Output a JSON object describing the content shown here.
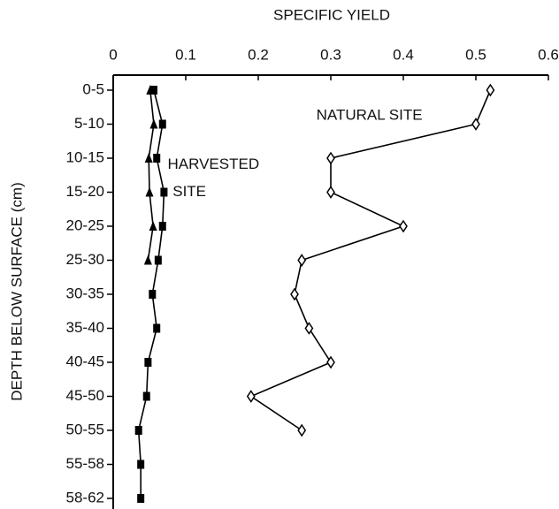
{
  "chart_data": {
    "type": "line",
    "orientation": "horizontal",
    "title": "SPECIFIC YIELD",
    "y_label": "DEPTH BELOW SURFACE (cm)",
    "categories": [
      "0-5",
      "5-10",
      "10-15",
      "15-20",
      "20-25",
      "25-30",
      "30-35",
      "35-40",
      "40-45",
      "45-50",
      "50-55",
      "55-58",
      "58-62"
    ],
    "xlim": [
      0,
      0.6
    ],
    "xticks": [
      0,
      0.1,
      0.2,
      0.3,
      0.4,
      0.5,
      0.6
    ],
    "series": [
      {
        "color": "#000000",
        "marker": "diamond",
        "values": [
          0.52,
          0.5,
          0.3,
          0.3,
          0.4,
          0.26,
          0.25,
          0.27,
          0.3,
          0.19,
          0.26,
          null,
          null
        ]
      },
      {
        "color": "#000000",
        "marker": "square",
        "values": [
          0.056,
          0.068,
          0.06,
          0.07,
          0.068,
          0.062,
          0.054,
          0.06,
          0.048,
          0.046,
          0.035,
          0.038,
          0.038
        ]
      },
      {
        "color": "#000000",
        "marker": "triangle",
        "values": [
          0.051,
          0.056,
          0.049,
          0.05,
          0.055,
          0.048,
          null,
          null,
          null,
          null,
          null,
          null,
          null
        ]
      }
    ],
    "annotations": [
      {
        "text": "NATURAL SITE",
        "x": 0.28,
        "category": 0.75
      },
      {
        "text": "HARVESTED",
        "x": 0.075,
        "category": 2.2
      },
      {
        "text": "SITE",
        "x": 0.082,
        "category": 3.0
      }
    ]
  }
}
